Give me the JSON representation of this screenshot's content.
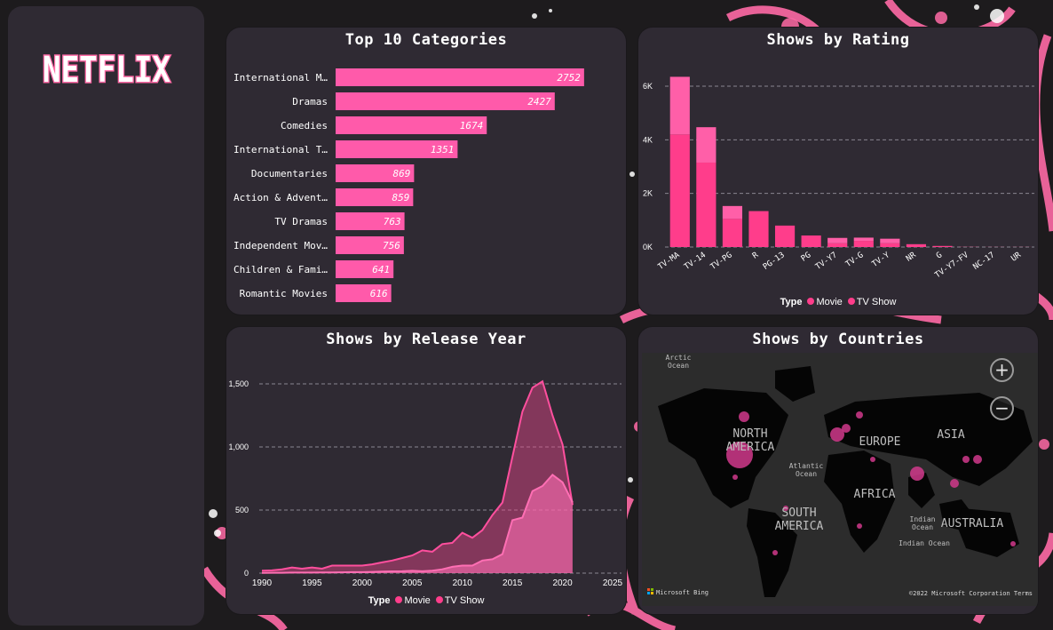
{
  "branding": {
    "logo_text": "NETFLIX"
  },
  "panels": {
    "categories": {
      "title": "Top 10 Categories"
    },
    "rating": {
      "title": "Shows by Rating"
    },
    "release_year": {
      "title": "Shows by Release Year"
    },
    "countries": {
      "title": "Shows by Countries"
    }
  },
  "legend": {
    "label": "Type",
    "movie": "Movie",
    "tv": "TV Show"
  },
  "colors": {
    "movie": "#ff3d8b",
    "tv": "#ff5fa8",
    "panel": "#2f2a33",
    "bar": "#ff5aaa"
  },
  "map": {
    "labels": {
      "north_america": "NORTH\nAMERICA",
      "south_america": "SOUTH\nAMERICA",
      "europe": "EUROPE",
      "africa": "AFRICA",
      "asia": "ASIA",
      "australia": "AUSTRALIA",
      "atlantic": "Atlantic\nOcean",
      "indian": "Indian\nOcean",
      "indian2": "Indian Ocean",
      "arctic": "Arctic\nOcean"
    },
    "zoom_in": "+",
    "zoom_out": "−",
    "provider": "Microsoft Bing",
    "copyright": "©2022 Microsoft Corporation Terms"
  },
  "chart_data": [
    {
      "type": "bar",
      "title": "Top 10 Categories",
      "orientation": "horizontal",
      "categories": [
        "International M…",
        "Dramas",
        "Comedies",
        "International T…",
        "Documentaries",
        "Action & Advent…",
        "TV Dramas",
        "Independent Mov…",
        "Children & Fami…",
        "Romantic Movies"
      ],
      "values": [
        2752,
        2427,
        1674,
        1351,
        869,
        859,
        763,
        756,
        641,
        616
      ],
      "xlim": [
        0,
        2950
      ]
    },
    {
      "type": "bar",
      "title": "Shows by Rating",
      "stacked": true,
      "categories": [
        "TV-MA",
        "TV-14",
        "TV-PG",
        "R",
        "PG-13",
        "PG",
        "TV-Y7",
        "TV-G",
        "TV-Y",
        "NR",
        "G",
        "TV-Y7-FV",
        "NC-17",
        "UR"
      ],
      "series": [
        {
          "name": "Movie",
          "values": [
            4200,
            3150,
            1050,
            1340,
            800,
            430,
            140,
            230,
            140,
            100,
            40,
            5,
            3,
            3
          ]
        },
        {
          "name": "TV Show",
          "values": [
            2150,
            1320,
            480,
            2,
            0,
            0,
            200,
            120,
            170,
            5,
            0,
            1,
            0,
            0
          ]
        }
      ],
      "yticks": [
        "0K",
        "2K",
        "4K",
        "6K"
      ],
      "ylim": [
        0,
        6000
      ],
      "ylim_max": 6000,
      "legend_position": "bottom"
    },
    {
      "type": "area",
      "title": "Shows by Release Year",
      "x": [
        1990,
        1991,
        1992,
        1993,
        1994,
        1995,
        1996,
        1997,
        1998,
        1999,
        2000,
        2001,
        2002,
        2003,
        2004,
        2005,
        2006,
        2007,
        2008,
        2009,
        2010,
        2011,
        2012,
        2013,
        2014,
        2015,
        2016,
        2017,
        2018,
        2019,
        2020,
        2021
      ],
      "series": [
        {
          "name": "Movie",
          "values": [
            20,
            22,
            30,
            45,
            35,
            45,
            35,
            60,
            60,
            60,
            60,
            70,
            85,
            100,
            120,
            140,
            180,
            170,
            230,
            240,
            320,
            280,
            340,
            460,
            560,
            920,
            1280,
            1470,
            1520,
            1250,
            1020,
            540
          ]
        },
        {
          "name": "TV Show",
          "values": [
            2,
            3,
            3,
            4,
            4,
            4,
            5,
            5,
            6,
            8,
            8,
            10,
            12,
            14,
            15,
            18,
            15,
            20,
            30,
            50,
            60,
            60,
            100,
            110,
            150,
            420,
            440,
            650,
            690,
            780,
            720,
            560
          ]
        }
      ],
      "xticks": [
        "1990",
        "1995",
        "2000",
        "2005",
        "2010",
        "2015",
        "2020",
        "2025"
      ],
      "yticks": [
        "0",
        "500",
        "1,000",
        "1,500"
      ],
      "xlim": [
        1990,
        2025
      ],
      "ylim": [
        0,
        1620
      ],
      "legend_position": "bottom"
    }
  ]
}
